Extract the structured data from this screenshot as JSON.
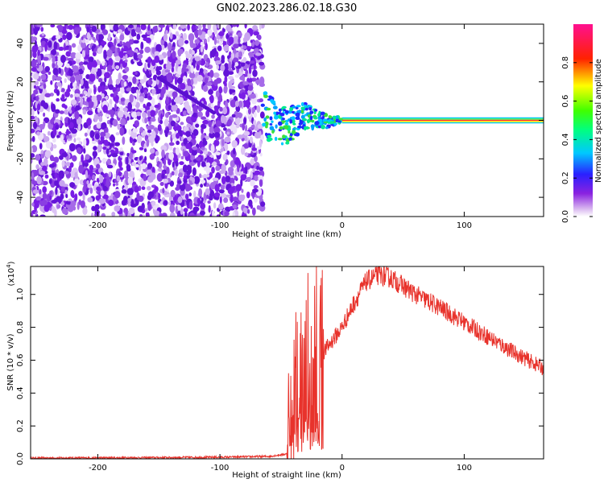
{
  "title": "GN02.2023.286.02.18.G30",
  "colors": {
    "snr_line": "#e8332c",
    "spectrogram_scatter": "#7a1ee6",
    "spectrogram_center_line": "#ff3333",
    "frame": "#000000"
  },
  "chart_data": [
    {
      "type": "heatmap",
      "xlabel": "Height of straight line (km)",
      "ylabel": "Frequency (Hz)",
      "xlim": [
        -255,
        165
      ],
      "ylim": [
        -50,
        50
      ],
      "x_ticks": [
        -200,
        -100,
        0,
        100
      ],
      "x_tick_labels": [
        "-200",
        "-100",
        "0",
        "100"
      ],
      "y_ticks": [
        -40,
        -20,
        0,
        20,
        40
      ],
      "y_tick_labels": [
        "-40",
        "-20",
        "0",
        "20",
        "40"
      ],
      "colorbar": {
        "label": "Normalized spectral amplitude",
        "range": [
          0,
          1
        ],
        "ticks": [
          0.0,
          0.2,
          0.4,
          0.6,
          0.8
        ],
        "tick_labels": [
          "0.0",
          "0.2",
          "0.4",
          "0.6",
          "0.8"
        ],
        "colormap": "rainbow (white → purple → blue → cyan → green → yellow → red → magenta)"
      },
      "features": {
        "noise_region_x": [
          -255,
          -65
        ],
        "dominant_frequency_hz": 0,
        "stable_signal_x_start": 0,
        "stable_signal_x_end": 165,
        "converging_track_x": [
          -65,
          0
        ]
      }
    },
    {
      "type": "line",
      "xlabel": "Height of straight line (km)",
      "ylabel": "SNR (10 * v/v)",
      "y_multiplier_label": "(x10",
      "y_multiplier_exp": "4",
      "y_multiplier_close": ")",
      "xlim": [
        -255,
        165
      ],
      "ylim": [
        0,
        1.17
      ],
      "x_ticks": [
        -200,
        -100,
        0,
        100
      ],
      "x_tick_labels": [
        "-200",
        "-100",
        "0",
        "100"
      ],
      "y_ticks": [
        0.0,
        0.2,
        0.4,
        0.6,
        0.8,
        1.0
      ],
      "y_tick_labels": [
        "0.0",
        "0.2",
        "0.4",
        "0.6",
        "0.8",
        "1.0"
      ],
      "series": [
        {
          "x": [
            -255,
            -200,
            -150,
            -100,
            -60,
            -45,
            -40,
            -35,
            -30,
            -25,
            -20,
            -15,
            -10,
            -5,
            0,
            10,
            20,
            30,
            40,
            50,
            60,
            80,
            100,
            120,
            140,
            160,
            165
          ],
          "y": [
            0.005,
            0.006,
            0.008,
            0.01,
            0.015,
            0.03,
            0.2,
            0.45,
            0.5,
            0.55,
            0.6,
            0.65,
            0.7,
            0.75,
            0.8,
            0.95,
            1.08,
            1.12,
            1.1,
            1.05,
            1.0,
            0.92,
            0.83,
            0.74,
            0.65,
            0.57,
            0.55
          ]
        }
      ]
    }
  ]
}
